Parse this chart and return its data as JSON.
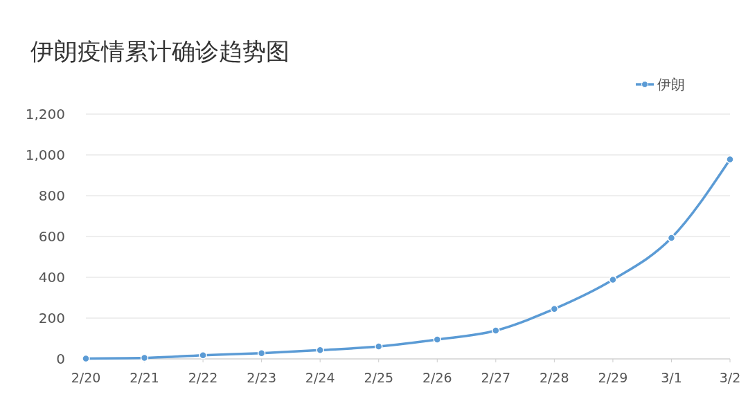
{
  "chart_data": {
    "type": "line",
    "title": "伊朗疫情累计确诊趋势图",
    "categories": [
      "2/20",
      "2/21",
      "2/22",
      "2/23",
      "2/24",
      "2/25",
      "2/26",
      "2/27",
      "2/28",
      "2/29",
      "3/1",
      "3/2"
    ],
    "series": [
      {
        "name": "伊朗",
        "color": "#5b9bd5",
        "values": [
          2,
          5,
          18,
          28,
          43,
          61,
          95,
          139,
          245,
          388,
          593,
          978
        ]
      }
    ],
    "ylim": [
      0,
      1200
    ],
    "yticks": [
      0,
      {
        "value": 200,
        "label": "200"
      },
      {
        "value": 400,
        "label": "400"
      },
      {
        "value": 600,
        "label": "600"
      },
      {
        "value": 800,
        "label": "800"
      },
      {
        "value": 1000,
        "label": "1,000"
      },
      {
        "value": 1200,
        "label": "1,200"
      }
    ],
    "grid": "y",
    "legend": "top right",
    "marker": "circle",
    "line_style": "solid"
  }
}
